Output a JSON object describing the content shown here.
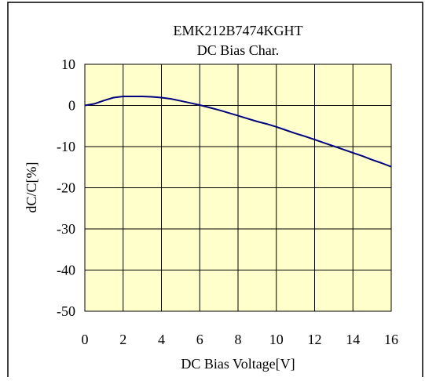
{
  "chart_data": {
    "type": "line",
    "title": "EMK212B7474KGHT",
    "subtitle": "DC Bias Char.",
    "xlabel": "DC Bias Voltage[V]",
    "ylabel": "dC/C[%]",
    "xlim": [
      0,
      16
    ],
    "ylim": [
      -50,
      10
    ],
    "xticks": [
      0,
      2,
      4,
      6,
      8,
      10,
      12,
      14,
      16
    ],
    "yticks": [
      10,
      0,
      -10,
      -20,
      -30,
      -40,
      -50
    ],
    "grid": true,
    "legend": "none",
    "plot_background": "#ffffcc",
    "series": [
      {
        "color": "#000080",
        "x": [
          0,
          0.5,
          1,
          1.5,
          2,
          2.5,
          3,
          3.5,
          4,
          4.5,
          5,
          5.5,
          6,
          6.5,
          7,
          7.5,
          8,
          8.5,
          9,
          9.5,
          10,
          10.5,
          11,
          11.5,
          12,
          12.5,
          13,
          13.5,
          14,
          14.5,
          15,
          15.5,
          16
        ],
        "y": [
          0,
          0.4,
          1.2,
          1.9,
          2.2,
          2.2,
          2.2,
          2.1,
          1.9,
          1.6,
          1.1,
          0.6,
          0.1,
          -0.5,
          -1.1,
          -1.8,
          -2.5,
          -3.2,
          -3.9,
          -4.5,
          -5.2,
          -6.0,
          -6.8,
          -7.5,
          -8.3,
          -9.1,
          -9.9,
          -10.7,
          -11.5,
          -12.3,
          -13.2,
          -14.0,
          -14.9
        ]
      }
    ]
  }
}
